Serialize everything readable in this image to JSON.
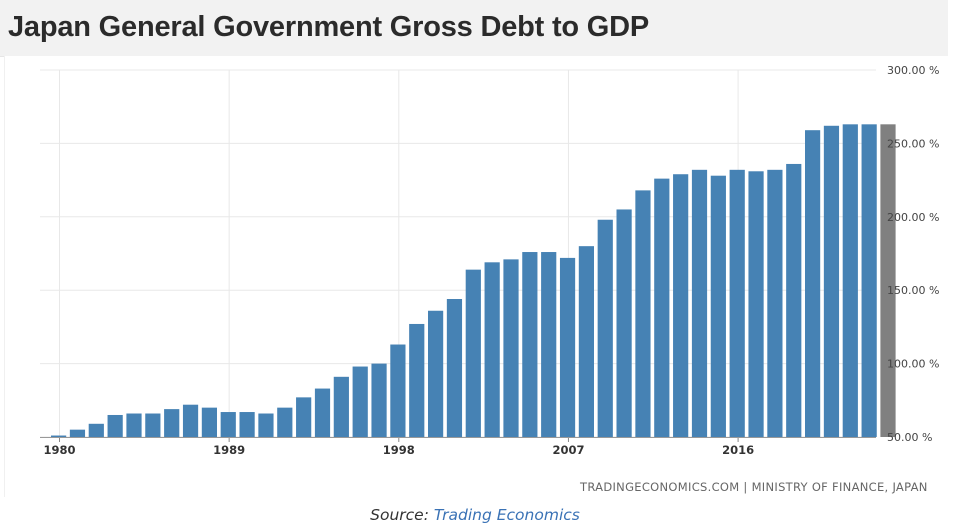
{
  "title": "Japan General Government Gross Debt to GDP",
  "watermark": "TRADINGECONOMICS.COM | MINISTRY OF FINANCE, JAPAN",
  "source_prefix": "Source:",
  "source_link": "Trading Economics",
  "colors": {
    "bar": "#4682b4",
    "bar_last": "#808080",
    "grid": "#e8e8e8",
    "title_bg": "#f2f2f2"
  },
  "chart_data": {
    "type": "bar",
    "title": "Japan General Government Gross Debt to GDP",
    "xlabel": "",
    "ylabel": "",
    "ylim": [
      50,
      300
    ],
    "y_axis_position": "right",
    "y_ticks": [
      "300.00 %",
      "250.00 %",
      "200.00 %",
      "150.00 %",
      "100.00 %",
      "50.00 %"
    ],
    "y_tick_values": [
      300,
      250,
      200,
      150,
      100,
      50
    ],
    "x_tick_labels": [
      "1980",
      "1989",
      "1998",
      "2007",
      "2016"
    ],
    "grid": true,
    "categories": [
      1980,
      1981,
      1982,
      1983,
      1984,
      1985,
      1986,
      1987,
      1988,
      1989,
      1990,
      1991,
      1992,
      1993,
      1994,
      1995,
      1996,
      1997,
      1998,
      1999,
      2000,
      2001,
      2002,
      2003,
      2004,
      2005,
      2006,
      2007,
      2008,
      2009,
      2010,
      2011,
      2012,
      2013,
      2014,
      2015,
      2016,
      2017,
      2018,
      2019,
      2020,
      2021,
      2022,
      2023,
      2024
    ],
    "values": [
      51,
      55,
      59,
      65,
      66,
      66,
      69,
      72,
      70,
      67,
      67,
      66,
      70,
      77,
      83,
      91,
      98,
      100,
      113,
      127,
      136,
      144,
      164,
      169,
      171,
      176,
      176,
      172,
      180,
      198,
      205,
      218,
      226,
      229,
      232,
      228,
      232,
      231,
      232,
      236,
      259,
      262,
      263,
      263,
      263
    ],
    "last_bar_is_forecast": true
  }
}
